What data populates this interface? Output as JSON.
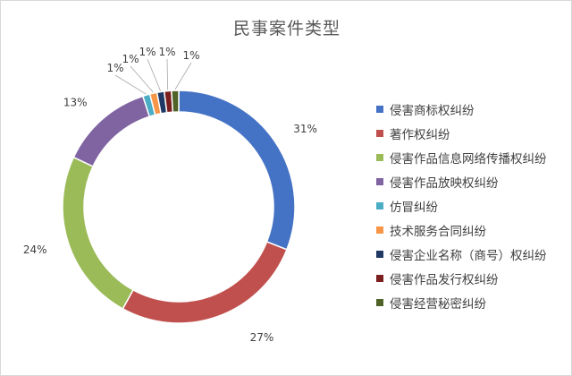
{
  "chart_data": {
    "type": "pie",
    "donut": true,
    "title": "民事案件类型",
    "legend_position": "right",
    "categories": [
      "侵害商标权纠纷",
      "著作权纠纷",
      "侵害作品信息网络传播权纠纷",
      "侵害作品放映权纠纷",
      "仿冒纠纷",
      "技术服务合同纠纷",
      "侵害企业名称（商号）权纠纷",
      "侵害作品发行权纠纷",
      "侵害经营秘密纠纷"
    ],
    "values": [
      31,
      27,
      24,
      13,
      1,
      1,
      1,
      1,
      1
    ],
    "labels": [
      "31%",
      "27%",
      "24%",
      "13%",
      "1%",
      "1%",
      "1%",
      "1%",
      "1%"
    ],
    "colors": [
      "#4472C4",
      "#C0504D",
      "#9BBB59",
      "#8064A2",
      "#4BACC6",
      "#F79646",
      "#1F3864",
      "#7B1E1E",
      "#4F6228"
    ]
  }
}
